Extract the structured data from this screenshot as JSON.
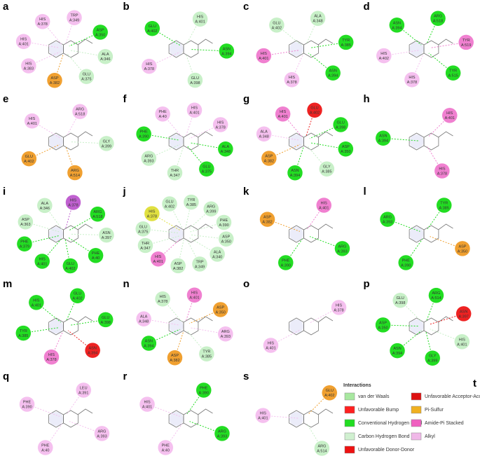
{
  "panels": [
    {
      "letter": "a",
      "residues": [
        {
          "name": "TRP",
          "id": "A:349",
          "color": "#f5c0ef"
        },
        {
          "name": "ASP",
          "id": "A:350",
          "color": "#22dd22"
        },
        {
          "name": "ALA",
          "id": "A:346",
          "color": "#c8f0c8"
        },
        {
          "name": "GLU",
          "id": "A:375",
          "color": "#c8f0c8"
        },
        {
          "name": "ASP",
          "id": "A:382",
          "color": "#f0a030"
        },
        {
          "name": "HIS",
          "id": "A:383",
          "color": "#f5c0ef"
        },
        {
          "name": "HIS",
          "id": "A:401",
          "color": "#f5c0ef"
        },
        {
          "name": "HIS",
          "id": "A:378",
          "color": "#f5c0ef"
        }
      ]
    },
    {
      "letter": "b",
      "residues": [
        {
          "name": "HIS",
          "id": "A:401",
          "color": "#c8f0c8"
        },
        {
          "name": "ASN",
          "id": "A:394",
          "color": "#22dd22"
        },
        {
          "name": "GLU",
          "id": "A:398",
          "color": "#c8f0c8"
        },
        {
          "name": "HIS",
          "id": "A:378",
          "color": "#f5c0ef"
        },
        {
          "name": "GLU",
          "id": "A:402",
          "color": "#22dd22"
        }
      ]
    },
    {
      "letter": "c",
      "residues": [
        {
          "name": "ALA",
          "id": "A:348",
          "color": "#c8f0c8"
        },
        {
          "name": "TYR",
          "id": "A:385",
          "color": "#22dd22"
        },
        {
          "name": "ASN",
          "id": "A:394",
          "color": "#22dd22"
        },
        {
          "name": "HIS",
          "id": "A:378",
          "color": "#f5c0ef"
        },
        {
          "name": "HIS",
          "id": "A:401",
          "color": "#f080d0"
        },
        {
          "name": "GLU",
          "id": "A:402",
          "color": "#c8f0c8"
        }
      ]
    },
    {
      "letter": "d",
      "residues": [
        {
          "name": "ARG",
          "id": "A:518",
          "color": "#22dd22"
        },
        {
          "name": "TYR",
          "id": "A:519",
          "color": "#f080d0"
        },
        {
          "name": "TYR",
          "id": "A:515",
          "color": "#22dd22"
        },
        {
          "name": "HIS",
          "id": "A:378",
          "color": "#f5c0ef"
        },
        {
          "name": "HIS",
          "id": "A:402",
          "color": "#f5c0ef"
        },
        {
          "name": "ASN",
          "id": "A:394",
          "color": "#22dd22"
        }
      ]
    },
    {
      "letter": "e",
      "residues": [
        {
          "name": "ARG",
          "id": "A:518",
          "color": "#f5c0ef"
        },
        {
          "name": "GLY",
          "id": "A:399",
          "color": "#c8f0c8"
        },
        {
          "name": "ARG",
          "id": "A:514",
          "color": "#f0a030"
        },
        {
          "name": "GLU",
          "id": "A:402",
          "color": "#f0a030"
        },
        {
          "name": "HIS",
          "id": "A:401",
          "color": "#f5c0ef"
        }
      ]
    },
    {
      "letter": "f",
      "residues": [
        {
          "name": "HIS",
          "id": "A:401",
          "color": "#f5c0ef"
        },
        {
          "name": "HIS",
          "id": "A:378",
          "color": "#f5c0ef"
        },
        {
          "name": "ALA",
          "id": "A:348",
          "color": "#22dd22"
        },
        {
          "name": "GLU",
          "id": "A:375",
          "color": "#22dd22"
        },
        {
          "name": "THR",
          "id": "A:347",
          "color": "#c8f0c8"
        },
        {
          "name": "ARG",
          "id": "A:393",
          "color": "#c8f0c8"
        },
        {
          "name": "PHE",
          "id": "A:390",
          "color": "#22dd22"
        },
        {
          "name": "PHE",
          "id": "A:40",
          "color": "#f5c0ef"
        }
      ]
    },
    {
      "letter": "g",
      "residues": [
        {
          "name": "GLU",
          "id": "A:402",
          "color": "#ee2222"
        },
        {
          "name": "GLU",
          "id": "A:398",
          "color": "#22dd22"
        },
        {
          "name": "ASP",
          "id": "A:350",
          "color": "#22dd22"
        },
        {
          "name": "GLY",
          "id": "A:385",
          "color": "#c8f0c8"
        },
        {
          "name": "ASN",
          "id": "A:394",
          "color": "#22dd22"
        },
        {
          "name": "ASP",
          "id": "A:382",
          "color": "#f0a030"
        },
        {
          "name": "ALA",
          "id": "A:348",
          "color": "#f5c0ef"
        },
        {
          "name": "HIS",
          "id": "A:401",
          "color": "#f080d0"
        }
      ]
    },
    {
      "letter": "h",
      "residues": [
        {
          "name": "HIS",
          "id": "A:401",
          "color": "#f080d0"
        },
        {
          "name": "HIS",
          "id": "A:378",
          "color": "#f080d0"
        },
        {
          "name": "ASN",
          "id": "A:394",
          "color": "#22dd22"
        }
      ]
    },
    {
      "letter": "i",
      "residues": [
        {
          "name": "HIS",
          "id": "A:378",
          "color": "#c060d0"
        },
        {
          "name": "ARG",
          "id": "A:518",
          "color": "#22dd22"
        },
        {
          "name": "ASN",
          "id": "A:397",
          "color": "#c8f0c8"
        },
        {
          "name": "PHE",
          "id": "A:40",
          "color": "#22dd22"
        },
        {
          "name": "GLU",
          "id": "A:402",
          "color": "#22dd22"
        },
        {
          "name": "HIS",
          "id": "A:401",
          "color": "#22dd22"
        },
        {
          "name": "PHE",
          "id": "A:379",
          "color": "#22dd22"
        },
        {
          "name": "ASP",
          "id": "A:363",
          "color": "#c8f0c8"
        },
        {
          "name": "ALA",
          "id": "A:346",
          "color": "#c8f0c8"
        }
      ]
    },
    {
      "letter": "j",
      "residues": [
        {
          "name": "TYR",
          "id": "A:385",
          "color": "#c8f0c8"
        },
        {
          "name": "ARG",
          "id": "A:399",
          "color": "#c8f0c8"
        },
        {
          "name": "PHE",
          "id": "A:390",
          "color": "#c8f0c8"
        },
        {
          "name": "ASP",
          "id": "A:350",
          "color": "#c8f0c8"
        },
        {
          "name": "ALA",
          "id": "A:340",
          "color": "#c8f0c8"
        },
        {
          "name": "TRP",
          "id": "A:349",
          "color": "#c8f0c8"
        },
        {
          "name": "ASP",
          "id": "A:382",
          "color": "#c8f0c8"
        },
        {
          "name": "HIS",
          "id": "A:401",
          "color": "#f080d0"
        },
        {
          "name": "THR",
          "id": "A:347",
          "color": "#c8f0c8"
        },
        {
          "name": "GLU",
          "id": "A:375",
          "color": "#c8f0c8"
        },
        {
          "name": "HIS",
          "id": "A:378",
          "color": "#e0e040"
        },
        {
          "name": "GLU",
          "id": "A:402",
          "color": "#c8f0c8"
        }
      ]
    },
    {
      "letter": "k",
      "residues": [
        {
          "name": "HIS",
          "id": "A:401",
          "color": "#f080d0"
        },
        {
          "name": "ARG",
          "id": "A:393",
          "color": "#22dd22"
        },
        {
          "name": "PHE",
          "id": "A:390",
          "color": "#22dd22"
        },
        {
          "name": "ASP",
          "id": "A:382",
          "color": "#f0a030"
        }
      ]
    },
    {
      "letter": "l",
      "residues": [
        {
          "name": "TYR",
          "id": "A:385",
          "color": "#22dd22"
        },
        {
          "name": "ASP",
          "id": "A:350",
          "color": "#f0a030"
        },
        {
          "name": "PHE",
          "id": "A:390",
          "color": "#22dd22"
        },
        {
          "name": "ARG",
          "id": "A:393",
          "color": "#22dd22"
        }
      ]
    },
    {
      "letter": "m",
      "residues": [
        {
          "name": "GLU",
          "id": "A:402",
          "color": "#22dd22"
        },
        {
          "name": "GLU",
          "id": "A:398",
          "color": "#22dd22"
        },
        {
          "name": "ASN",
          "id": "A:394",
          "color": "#ee2222"
        },
        {
          "name": "HIS",
          "id": "A:378",
          "color": "#f080d0"
        },
        {
          "name": "TYR",
          "id": "A:385",
          "color": "#22dd22"
        },
        {
          "name": "HIS",
          "id": "A:401",
          "color": "#22dd22"
        }
      ]
    },
    {
      "letter": "n",
      "residues": [
        {
          "name": "HIS",
          "id": "A:401",
          "color": "#f080d0"
        },
        {
          "name": "ASP",
          "id": "A:350",
          "color": "#f0a030"
        },
        {
          "name": "ARG",
          "id": "A:393",
          "color": "#f5c0ef"
        },
        {
          "name": "TYR",
          "id": "A:385",
          "color": "#c8f0c8"
        },
        {
          "name": "ASP",
          "id": "A:382",
          "color": "#f0a030"
        },
        {
          "name": "ASN",
          "id": "A:394",
          "color": "#22dd22"
        },
        {
          "name": "ALA",
          "id": "A:348",
          "color": "#f5c0ef"
        },
        {
          "name": "HIS",
          "id": "A:378",
          "color": "#c8f0c8"
        }
      ]
    },
    {
      "letter": "o",
      "residues": [
        {
          "name": "HIS",
          "id": "A:378",
          "color": "#f5c0ef"
        },
        {
          "name": "HIS",
          "id": "A:401",
          "color": "#f5c0ef"
        }
      ]
    },
    {
      "letter": "p",
      "residues": [
        {
          "name": "ARG",
          "id": "A:514",
          "color": "#22dd22"
        },
        {
          "name": "ASN",
          "id": "A:397",
          "color": "#ee2222"
        },
        {
          "name": "HIS",
          "id": "A:401",
          "color": "#c8f0c8"
        },
        {
          "name": "GLY",
          "id": "A:399",
          "color": "#22dd22"
        },
        {
          "name": "ASN",
          "id": "A:394",
          "color": "#22dd22"
        },
        {
          "name": "ASP",
          "id": "A:350",
          "color": "#22dd22"
        },
        {
          "name": "GLU",
          "id": "A:398",
          "color": "#c8f0c8"
        }
      ]
    },
    {
      "letter": "q",
      "residues": [
        {
          "name": "LEU",
          "id": "A:391",
          "color": "#f5c0ef"
        },
        {
          "name": "ARG",
          "id": "A:393",
          "color": "#f5c0ef"
        },
        {
          "name": "PHE",
          "id": "A:40",
          "color": "#f5c0ef"
        },
        {
          "name": "PHE",
          "id": "A:390",
          "color": "#f5c0ef"
        }
      ]
    },
    {
      "letter": "r",
      "residues": [
        {
          "name": "PHE",
          "id": "A:390",
          "color": "#22dd22"
        },
        {
          "name": "ARG",
          "id": "A:393",
          "color": "#22dd22"
        },
        {
          "name": "PHE",
          "id": "A:40",
          "color": "#f5c0ef"
        },
        {
          "name": "HIS",
          "id": "A:401",
          "color": "#f5c0ef"
        }
      ]
    },
    {
      "letter": "s",
      "residues": [
        {
          "name": "GLU",
          "id": "A:402",
          "color": "#f0a030"
        },
        {
          "name": "ARG",
          "id": "A:514",
          "color": "#c8f0c8"
        },
        {
          "name": "HIS",
          "id": "A:401",
          "color": "#f5c0ef"
        }
      ]
    }
  ],
  "legend": {
    "letter": "t",
    "title": "Interactions",
    "items": [
      {
        "name": "van der Waals",
        "color": "#a8e8a0"
      },
      {
        "name": "Unfavorable Bump",
        "color": "#ff2020"
      },
      {
        "name": "Conventional Hydrogen Bond",
        "color": "#22dd22"
      },
      {
        "name": "Carbon Hydrogen Bond",
        "color": "#d0f0d0"
      },
      {
        "name": "Unfavorable Donor-Donor",
        "color": "#ee1111"
      },
      {
        "name": "Unfavorable Acceptor-Acceptor",
        "color": "#dd1111"
      },
      {
        "name": "Pi-Sulfur",
        "color": "#f0b020"
      },
      {
        "name": "Amide-Pi Stacked",
        "color": "#f060c0"
      },
      {
        "name": "Alkyl",
        "color": "#f0b8e8"
      }
    ]
  }
}
